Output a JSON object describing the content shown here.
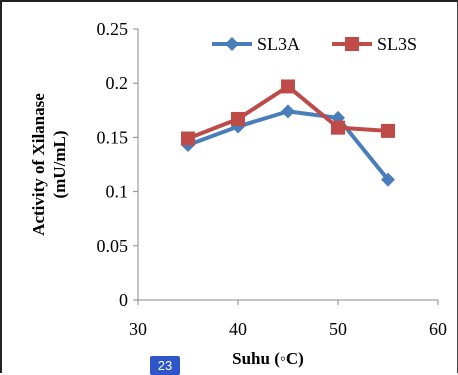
{
  "page_badge": "23",
  "chart_data": {
    "type": "line",
    "title": "",
    "xlabel": "Suhu (◦C)",
    "ylabel_lines": [
      "Activity of Xilanase",
      "(mU/mL)"
    ],
    "xlim": [
      30,
      60
    ],
    "ylim": [
      0,
      0.25
    ],
    "x_ticks": [
      30,
      40,
      50,
      60
    ],
    "y_ticks": [
      0,
      0.05,
      0.1,
      0.15,
      0.2,
      0.25
    ],
    "y_tick_labels": [
      "0",
      "0.05",
      "0.1",
      "0.15",
      "0.2",
      "0.25"
    ],
    "legend_position": "top-right",
    "grid": false,
    "series": [
      {
        "name": "SL3A",
        "color": "#4a7ebb",
        "marker": "diamond",
        "x": [
          35,
          40,
          45,
          50,
          55
        ],
        "y": [
          0.143,
          0.16,
          0.174,
          0.168,
          0.111
        ]
      },
      {
        "name": "SL3S",
        "color": "#be4b48",
        "marker": "square",
        "x": [
          35,
          40,
          45,
          50,
          55
        ],
        "y": [
          0.149,
          0.167,
          0.197,
          0.159,
          0.156
        ]
      }
    ]
  }
}
